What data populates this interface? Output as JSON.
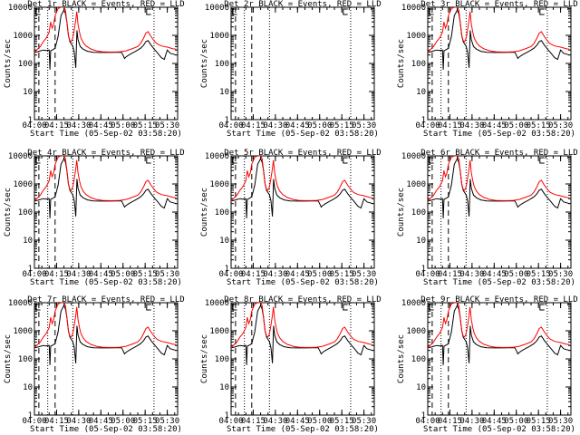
{
  "chart_data": {
    "type": "line",
    "ylabel": "Counts/sec",
    "xlabel": "Start Time (05-Sep-02 03:58:20)",
    "x_tick_labels": [
      "04:00",
      "04:15",
      "04:30",
      "04:45",
      "05:00",
      "05:15",
      "05:30"
    ],
    "x_ticks_minutes": [
      0,
      15,
      30,
      45,
      60,
      75,
      90
    ],
    "xlim_minutes": [
      0,
      97
    ],
    "ylim": [
      1,
      10000
    ],
    "y_scale": "log",
    "y_tick_labels": [
      "1",
      "10",
      "100",
      "1000",
      "10000"
    ],
    "y_ticks": [
      1,
      10,
      100,
      1000,
      10000
    ],
    "colors": {
      "events": "#000000",
      "lld": "#ff0000",
      "axes": "#000000"
    },
    "series_names": [
      "BLACK = Events",
      "RED = LLD"
    ],
    "lld_curve": [
      [
        0,
        250
      ],
      [
        2,
        320
      ],
      [
        4,
        400
      ],
      [
        6,
        600
      ],
      [
        8,
        800
      ],
      [
        10,
        1300
      ],
      [
        11,
        3000
      ],
      [
        12,
        1800
      ],
      [
        13,
        2500
      ],
      [
        14,
        5000
      ],
      [
        16,
        9000
      ],
      [
        18,
        10000
      ],
      [
        20,
        10000
      ],
      [
        21,
        8000
      ],
      [
        22,
        3000
      ],
      [
        23,
        1000
      ],
      [
        24,
        650
      ],
      [
        25,
        600
      ],
      [
        26,
        800
      ],
      [
        27,
        1600
      ],
      [
        28,
        3500
      ],
      [
        28.7,
        7000
      ],
      [
        29.5,
        2500
      ],
      [
        30.5,
        1300
      ],
      [
        31.5,
        800
      ],
      [
        33,
        550
      ],
      [
        35,
        420
      ],
      [
        38,
        330
      ],
      [
        42,
        280
      ],
      [
        46,
        260
      ],
      [
        50,
        255
      ],
      [
        54,
        255
      ],
      [
        58,
        260
      ],
      [
        62,
        280
      ],
      [
        66,
        330
      ],
      [
        70,
        400
      ],
      [
        72,
        520
      ],
      [
        74,
        800
      ],
      [
        75.5,
        1200
      ],
      [
        77,
        1350
      ],
      [
        79,
        900
      ],
      [
        81,
        650
      ],
      [
        83,
        500
      ],
      [
        86,
        420
      ],
      [
        90,
        380
      ],
      [
        94,
        330
      ],
      [
        96,
        320
      ]
    ],
    "events_curve": [
      [
        0,
        250
      ],
      [
        2,
        260
      ],
      [
        4,
        280
      ],
      [
        6,
        300
      ],
      [
        8,
        290
      ],
      [
        10,
        300
      ],
      [
        10.5,
        60
      ],
      [
        11,
        280
      ],
      [
        12,
        300
      ],
      [
        13,
        320
      ],
      [
        14,
        350
      ],
      [
        16,
        900
      ],
      [
        18,
        5000
      ],
      [
        20,
        8000
      ],
      [
        21,
        6000
      ],
      [
        22,
        3000
      ],
      [
        23,
        1000
      ],
      [
        24,
        600
      ],
      [
        26,
        400
      ],
      [
        27,
        250
      ],
      [
        28,
        70
      ],
      [
        28.8,
        1500
      ],
      [
        29.5,
        700
      ],
      [
        31,
        400
      ],
      [
        33,
        320
      ],
      [
        36,
        270
      ],
      [
        40,
        250
      ],
      [
        45,
        245
      ],
      [
        50,
        245
      ],
      [
        55,
        250
      ],
      [
        59,
        250
      ],
      [
        60,
        200
      ],
      [
        61,
        150
      ],
      [
        62,
        170
      ],
      [
        64,
        200
      ],
      [
        66,
        230
      ],
      [
        68,
        260
      ],
      [
        70,
        300
      ],
      [
        72,
        350
      ],
      [
        74,
        450
      ],
      [
        75.5,
        600
      ],
      [
        77,
        650
      ],
      [
        79,
        450
      ],
      [
        81,
        330
      ],
      [
        83,
        250
      ],
      [
        86,
        160
      ],
      [
        88,
        140
      ],
      [
        90,
        300
      ],
      [
        92,
        230
      ],
      [
        96,
        200
      ]
    ],
    "panels": [
      {
        "title": "Det 1r BLACK = Events, RED = LLD",
        "show_lld": true,
        "show_events": true,
        "dashed": [
          3,
          14
        ],
        "dotted": [
          9,
          26,
          81
        ]
      },
      {
        "title": "Det 2r BLACK = Events, RED = LLD",
        "show_lld": false,
        "show_events": false,
        "dashed": [
          3,
          14
        ],
        "dotted": [
          9,
          26,
          81
        ]
      },
      {
        "title": "Det 3r BLACK = Events, RED = LLD",
        "show_lld": true,
        "show_events": true,
        "dashed": [
          3,
          14
        ],
        "dotted": [
          9,
          26,
          81
        ]
      },
      {
        "title": "Det 4r BLACK = Events, RED = LLD",
        "show_lld": true,
        "show_events": true,
        "dashed": [
          3,
          14
        ],
        "dotted": [
          9,
          26,
          81
        ]
      },
      {
        "title": "Det 5r BLACK = Events, RED = LLD",
        "show_lld": true,
        "show_events": true,
        "dashed": [
          3,
          14
        ],
        "dotted": [
          9,
          26,
          81
        ]
      },
      {
        "title": "Det 6r BLACK = Events, RED = LLD",
        "show_lld": true,
        "show_events": true,
        "dashed": [
          3,
          14
        ],
        "dotted": [
          9,
          26,
          81
        ]
      },
      {
        "title": "Det 7r BLACK = Events, RED = LLD",
        "show_lld": true,
        "show_events": true,
        "dashed": [
          3,
          14
        ],
        "dotted": [
          9,
          26,
          81
        ]
      },
      {
        "title": "Det 8r BLACK = Events, RED = LLD",
        "show_lld": true,
        "show_events": true,
        "dashed": [
          3,
          14
        ],
        "dotted": [
          9,
          26,
          81
        ]
      },
      {
        "title": "Det 9r BLACK = Events, RED = LLD",
        "show_lld": true,
        "show_events": true,
        "dashed": [
          3,
          14
        ],
        "dotted": [
          9,
          26,
          81
        ]
      }
    ]
  }
}
